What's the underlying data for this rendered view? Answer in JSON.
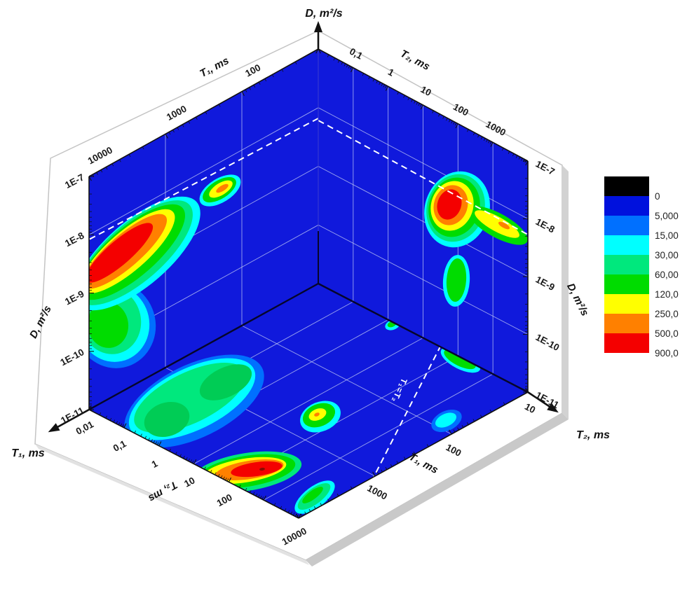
{
  "figure": {
    "kind": "3D NMR T1-T2-D correlation contour plot (three log-log contour maps on the walls of a cube)",
    "background": "#ffffff",
    "panel_blue": "#1019dc",
    "grid_color": "#c9d2f5"
  },
  "axis_titles": {
    "d_top": "D, m²/s",
    "t1_arrow": "T₁, ms",
    "t2_arrow": "T₂, ms",
    "t1_wall": "T₁, ms",
    "t2_wall": "T₂, ms",
    "d_left": "D, m²/s",
    "d_right": "D, m²/s",
    "t2_floor": "T₂, ms",
    "t1_floor": "T₁, ms",
    "diagonal": "T₁=T₂"
  },
  "tick_labels": {
    "d_left": [
      "1E-7",
      "1E-8",
      "1E-9",
      "1E-10",
      "1E-11"
    ],
    "d_right": [
      "1E-7",
      "1E-8",
      "1E-9",
      "1E-10",
      "1E-11"
    ],
    "t1_wall": [
      "100",
      "1000",
      "10000"
    ],
    "t2_wall": [
      "0,1",
      "1",
      "10",
      "100",
      "1000"
    ],
    "t2_floor": [
      "0,01",
      "0,1",
      "1",
      "10",
      "100",
      "10000"
    ],
    "t1_floor": [
      "10",
      "100",
      "1000"
    ]
  },
  "legend": {
    "labels": [
      "0",
      "5,000",
      "15,00",
      "30,00",
      "60,00",
      "120,0",
      "250,0",
      "500,0",
      "900,0"
    ],
    "colors": [
      "#000000",
      "#0011dd",
      "#0070ff",
      "#00ffff",
      "#00e87d",
      "#00dc00",
      "#ffff00",
      "#ff8000",
      "#f40000"
    ]
  },
  "chart_data": {
    "type": "heatmap",
    "title": "",
    "axes": {
      "T1_ms": {
        "range": [
          10,
          10000
        ],
        "scale": "log",
        "decades": 3
      },
      "T2_ms": {
        "range": [
          0.01,
          10000
        ],
        "scale": "log",
        "decades": 6
      },
      "D_m2_s": {
        "range": [
          1e-11,
          1e-07
        ],
        "scale": "log",
        "decades": 4
      }
    },
    "colorbar_levels": [
      "0",
      "5,000",
      "15,00",
      "30,00",
      "60,00",
      "120,0",
      "250,0",
      "500,0",
      "900,0"
    ],
    "peaks": [
      {
        "panel": "left-wall T1-D",
        "T1_ms": 3000,
        "D_m2_s": "2.5E-9",
        "intensity": ">900 (red)"
      },
      {
        "panel": "left-wall T1-D",
        "T1_ms": 3000,
        "D_m2_s": "2E-10",
        "intensity": "30-120 (green)"
      },
      {
        "panel": "left-wall T1-D",
        "T1_ms": 200,
        "D_m2_s": "3E-9",
        "intensity": "250-500 (orange)"
      },
      {
        "panel": "right-wall T2-D",
        "T2_ms": 60,
        "D_m2_s": "3.5E-9",
        "intensity": ">900 (red)"
      },
      {
        "panel": "right-wall T2-D",
        "T2_ms": 400,
        "D_m2_s": "8E-9",
        "intensity": "120-250 (yellow tail)"
      },
      {
        "panel": "right-wall T2-D",
        "T2_ms": 80,
        "D_m2_s": "2E-10",
        "intensity": "60-120 (green)"
      },
      {
        "panel": "floor T1-T2",
        "T1_ms": 1600,
        "T2_ms": 0.2,
        "intensity": "30-120 (teal)"
      },
      {
        "panel": "floor T1-T2",
        "T1_ms": 400,
        "T2_ms": 35,
        "intensity": "120-250 (yellow)"
      },
      {
        "panel": "floor T1-T2",
        "T1_ms": 5000,
        "T2_ms": 100,
        "intensity": ">900 (red)"
      },
      {
        "panel": "floor T1-T2",
        "T1_ms": 4200,
        "T2_ms": 4400,
        "intensity": "60-120 (green)"
      },
      {
        "panel": "floor T1-T2",
        "T1_ms": 74,
        "T2_ms": 3400,
        "intensity": "15-30 (cyan)"
      },
      {
        "panel": "floor T1-T2",
        "T1_ms": 10,
        "T2_ms": 120,
        "intensity": "30-60 (green, at wall base)"
      }
    ],
    "guide_lines": [
      {
        "panel": "left-wall",
        "style": "white-dashed",
        "from": [
          454,
          169
        ],
        "to": [
          127,
          342
        ]
      },
      {
        "panel": "right-wall",
        "style": "white-dashed",
        "from": [
          454,
          172
        ],
        "to": [
          753,
          335
        ]
      },
      {
        "panel": "floor",
        "label": "T₁=T₂",
        "style": "white-dashed",
        "from": [
          629,
          493
        ],
        "to": [
          522,
          703
        ],
        "label_pos": [
          566,
          556
        ],
        "label_rot": 115
      }
    ],
    "contour_blobs": {
      "left_wall": [
        [
          "lblue",
          164,
          464,
          58,
          62,
          -12
        ],
        [
          "cyan",
          162,
          462,
          51,
          55,
          -12
        ],
        [
          "teal",
          158,
          458,
          43,
          48,
          -12
        ],
        [
          "green",
          154,
          464,
          29,
          33,
          -8
        ],
        [
          "cyan",
          196,
          362,
          112,
          46,
          -41
        ],
        [
          "teal",
          192,
          361,
          104,
          41,
          -41
        ],
        [
          "green",
          188,
          360,
          96,
          35,
          -41
        ],
        [
          "yellow",
          182,
          359,
          86,
          28,
          -41
        ],
        [
          "orange",
          178,
          359,
          77,
          23,
          -41
        ],
        [
          "red",
          170,
          361,
          62,
          17,
          -41
        ],
        [
          "cyan",
          314,
          272,
          33,
          17,
          -32
        ],
        [
          "green",
          313,
          271,
          27,
          13,
          -32
        ],
        [
          "yellow",
          315,
          270,
          19,
          8.5,
          -32
        ],
        [
          "orange",
          317,
          269,
          10,
          4,
          -32
        ]
      ],
      "right_wall": [
        [
          "cyan",
          652,
          299,
          46,
          55,
          18
        ],
        [
          "teal",
          650,
          297,
          41,
          49,
          18
        ],
        [
          "green",
          648,
          296,
          36,
          43,
          18
        ],
        [
          "green",
          710,
          322,
          48,
          17,
          29
        ],
        [
          "yellow",
          709,
          320,
          36,
          10.5,
          29
        ],
        [
          "yellow",
          645,
          294,
          30,
          36,
          18
        ],
        [
          "orange",
          643,
          293,
          24,
          29,
          18
        ],
        [
          "red",
          641,
          292,
          17,
          22,
          18
        ],
        [
          "orange",
          719,
          322,
          9,
          3.5,
          29
        ],
        [
          "cyan",
          651,
          401,
          19,
          37,
          4
        ],
        [
          "green",
          651,
          400,
          14,
          31,
          4
        ]
      ],
      "floor": [
        [
          "lblue",
          277,
          573,
          108,
          52,
          -26
        ],
        [
          "cyan",
          274,
          570,
          98,
          44,
          -26
        ],
        [
          "teal",
          271,
          568,
          87,
          36,
          -26
        ],
        [
          "teal2",
          238,
          599,
          33,
          24,
          -18
        ],
        [
          "teal2",
          322,
          546,
          40,
          21,
          -26
        ],
        [
          "cyan",
          457,
          595,
          30,
          21,
          -22
        ],
        [
          "green",
          455,
          593,
          24,
          16,
          -22
        ],
        [
          "yellow",
          453,
          592,
          13,
          8,
          -22
        ],
        [
          "orange",
          452,
          592,
          4,
          2.5,
          -22
        ],
        [
          "teal",
          352,
          674,
          79,
          27,
          -9
        ],
        [
          "green",
          352,
          673,
          70,
          22,
          -9
        ],
        [
          "yellow",
          349,
          672,
          60,
          17,
          -9
        ],
        [
          "orange",
          356,
          671,
          49,
          13,
          -9
        ],
        [
          "red",
          366,
          670,
          37,
          10,
          -8
        ],
        [
          "darkred",
          374,
          670,
          4,
          2,
          -8
        ],
        [
          "cyan",
          449,
          710,
          34,
          15,
          -37
        ],
        [
          "teal",
          448,
          709,
          28,
          11,
          -37
        ],
        [
          "green",
          446,
          707,
          18,
          6,
          -37
        ],
        [
          "lblue",
          637,
          601,
          23,
          14,
          -25
        ],
        [
          "cyan",
          636,
          600,
          16,
          9,
          -25
        ],
        [
          "cyan",
          560,
          464,
          11,
          7,
          -20
        ],
        [
          "green",
          559,
          463,
          6.5,
          4,
          -20
        ],
        [
          "cyan",
          657,
          514,
          31,
          13,
          27
        ],
        [
          "green",
          656,
          513,
          25,
          9.5,
          27
        ]
      ],
      "ring_palette": {
        "lblue": "#0070ff",
        "cyan": "#00ffff",
        "teal": "#00e87d",
        "teal2": "#00cc55",
        "green": "#00dc00",
        "yellow": "#ffff00",
        "orange": "#ff8000",
        "red": "#f40000",
        "darkred": "#8a0c00"
      }
    }
  }
}
